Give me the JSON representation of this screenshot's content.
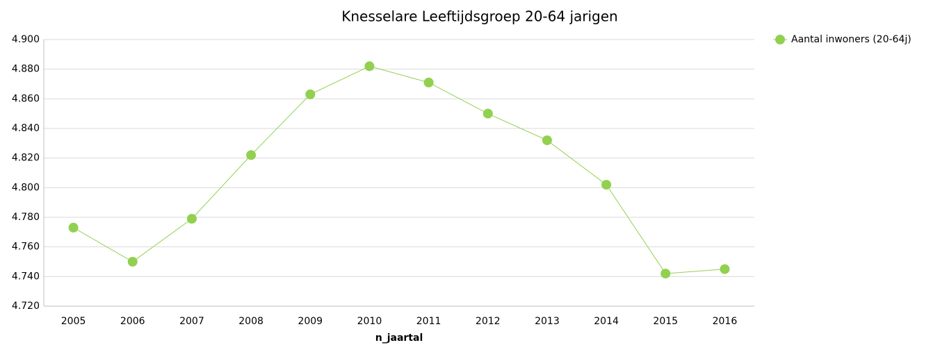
{
  "chart_data": {
    "type": "line",
    "title": "Knesselare  Leeftijdsgroep 20-64 jarigen",
    "x_label": "n_jaartal",
    "categories": [
      "2005",
      "2006",
      "2007",
      "2008",
      "2009",
      "2010",
      "2011",
      "2012",
      "2013",
      "2014",
      "2015",
      "2016"
    ],
    "series": [
      {
        "name": "Aantal inwoners  (20-64j)",
        "color": "#92d050",
        "values": [
          4773,
          4750,
          4779,
          4822,
          4863,
          4882,
          4871,
          4850,
          4832,
          4802,
          4742,
          4745
        ]
      }
    ],
    "ylim": [
      4720,
      4900
    ],
    "yticks": [
      {
        "value": 4720,
        "label": "4.720"
      },
      {
        "value": 4740,
        "label": "4.740"
      },
      {
        "value": 4760,
        "label": "4.760"
      },
      {
        "value": 4780,
        "label": "4.780"
      },
      {
        "value": 4800,
        "label": "4.800"
      },
      {
        "value": 4820,
        "label": "4.820"
      },
      {
        "value": 4840,
        "label": "4.840"
      },
      {
        "value": 4860,
        "label": "4.860"
      },
      {
        "value": 4880,
        "label": "4.880"
      },
      {
        "value": 4900,
        "label": "4.900"
      }
    ],
    "grid": true,
    "legend": "top-right"
  }
}
